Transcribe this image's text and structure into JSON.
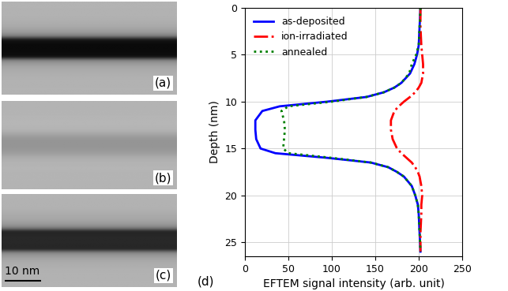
{
  "chart_data": {
    "type": "line",
    "orientation": "horizontal",
    "xlabel": "EFTEM signal intensity (arb. unit)",
    "ylabel": "Depth (nm)",
    "annotation": "(d)",
    "y": [
      0,
      2,
      4,
      5,
      6,
      7,
      8,
      8.5,
      9,
      9.5,
      10,
      10.5,
      11,
      12,
      13,
      14,
      15,
      15.5,
      16,
      16.5,
      17,
      17.5,
      18,
      19,
      20,
      21,
      22,
      24,
      26
    ],
    "series": [
      {
        "name": "as-deposited",
        "color": "#0000ff",
        "line_style": "solid",
        "values": [
          202,
          201,
          200,
          198,
          195,
          190,
          180,
          172,
          160,
          140,
          95,
          40,
          20,
          12,
          12,
          13,
          18,
          35,
          95,
          145,
          165,
          175,
          183,
          192,
          196,
          199,
          200,
          201,
          202
        ]
      },
      {
        "name": "ion-irradiated",
        "color": "#ff0000",
        "line_style": "dashdot",
        "values": [
          202,
          202,
          203,
          204,
          205,
          205,
          203,
          200,
          196,
          190,
          183,
          177,
          172,
          168,
          168,
          170,
          175,
          180,
          186,
          192,
          196,
          199,
          201,
          203,
          204,
          203,
          203,
          202,
          202
        ]
      },
      {
        "name": "annealed",
        "color": "#008000",
        "line_style": "dotted",
        "values": [
          202,
          201,
          200,
          197,
          192,
          189,
          180,
          172,
          160,
          140,
          100,
          50,
          42,
          45,
          46,
          45,
          44,
          50,
          100,
          145,
          165,
          175,
          183,
          192,
          196,
          199,
          200,
          201,
          202
        ]
      }
    ],
    "xlim": [
      0,
      250
    ],
    "xticks": [
      0,
      50,
      100,
      150,
      200,
      250
    ],
    "ylim": [
      26.5,
      0
    ],
    "yticks": [
      0,
      5,
      10,
      15,
      20,
      25
    ],
    "grid": true,
    "legend": "upper left"
  },
  "images": {
    "panels": [
      {
        "label": "(a)",
        "series": "as-deposited"
      },
      {
        "label": "(b)",
        "series": "ion-irradiated"
      },
      {
        "label": "(c)",
        "series": "annealed"
      }
    ],
    "scale_bar": {
      "label": "10 nm",
      "length": 10
    }
  }
}
